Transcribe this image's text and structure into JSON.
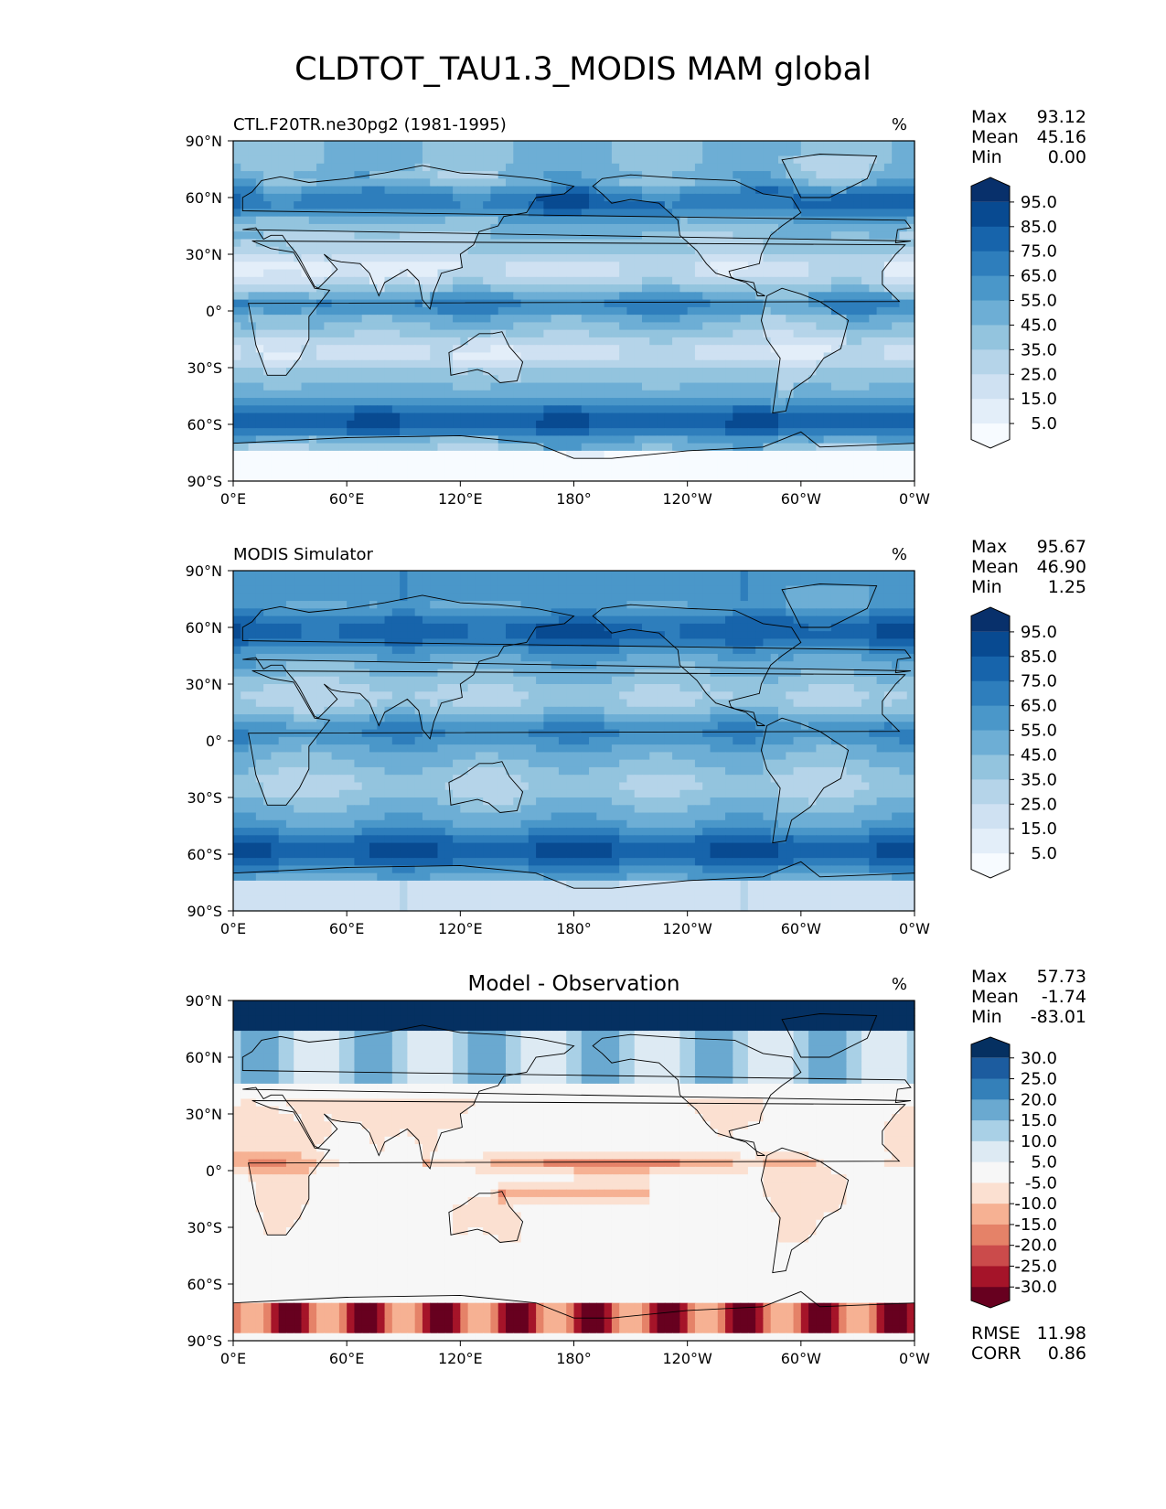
{
  "title": "CLDTOT_TAU1.3_MODIS MAM global",
  "panels": [
    {
      "left_title": "CTL.F20TR.ne30pg2 (1981-1995)",
      "center_title": "",
      "units": "%",
      "stats": [
        {
          "label": "Max",
          "value": "93.12"
        },
        {
          "label": "Mean",
          "value": "45.16"
        },
        {
          "label": "Min",
          "value": "0.00"
        }
      ],
      "colorbar": {
        "colors": [
          "#f7fbff",
          "#e3eef9",
          "#cfe1f2",
          "#b5d4e9",
          "#93c4de",
          "#6daed5",
          "#4a97c9",
          "#2e7ebc",
          "#1764ab",
          "#084a91",
          "#08306b"
        ],
        "labels": [
          "5.0",
          "15.0",
          "25.0",
          "35.0",
          "45.0",
          "55.0",
          "65.0",
          "75.0",
          "85.0",
          "95.0"
        ]
      }
    },
    {
      "left_title": "MODIS Simulator",
      "center_title": "",
      "units": "%",
      "stats": [
        {
          "label": "Max",
          "value": "95.67"
        },
        {
          "label": "Mean",
          "value": "46.90"
        },
        {
          "label": "Min",
          "value": "1.25"
        }
      ],
      "colorbar": {
        "colors": [
          "#f7fbff",
          "#e3eef9",
          "#cfe1f2",
          "#b5d4e9",
          "#93c4de",
          "#6daed5",
          "#4a97c9",
          "#2e7ebc",
          "#1764ab",
          "#084a91",
          "#08306b"
        ],
        "labels": [
          "5.0",
          "15.0",
          "25.0",
          "35.0",
          "45.0",
          "55.0",
          "65.0",
          "75.0",
          "85.0",
          "95.0"
        ]
      }
    },
    {
      "left_title": "",
      "center_title": "Model - Observation",
      "units": "%",
      "stats": [
        {
          "label": "Max",
          "value": "57.73"
        },
        {
          "label": "Mean",
          "value": "-1.74"
        },
        {
          "label": "Min",
          "value": "-83.01"
        }
      ],
      "extra_stats": [
        {
          "label": "RMSE",
          "value": "11.98"
        },
        {
          "label": "CORR",
          "value": "0.86"
        }
      ],
      "colorbar": {
        "colors": [
          "#67001f",
          "#a51429",
          "#cb4b4b",
          "#e58268",
          "#f6b193",
          "#fbe0d1",
          "#f7f7f7",
          "#ddeaf3",
          "#a9d0e6",
          "#6aa9d0",
          "#3480b9",
          "#1c5c9f",
          "#053061"
        ],
        "labels": [
          "-30.0",
          "-25.0",
          "-20.0",
          "-15.0",
          "-10.0",
          "-5.0",
          "5.0",
          "10.0",
          "15.0",
          "20.0",
          "25.0",
          "30.0"
        ]
      }
    }
  ],
  "axes": {
    "lat_ticks": [
      "90°N",
      "60°N",
      "30°N",
      "0°",
      "30°S",
      "60°S",
      "90°S"
    ],
    "lon_ticks": [
      "0°E",
      "60°E",
      "120°E",
      "180°",
      "120°W",
      "60°W",
      "0°W"
    ]
  },
  "colors": {
    "blue_scale": "Blues",
    "diff_scale": "RdBu_r",
    "coast": "#000000"
  }
}
